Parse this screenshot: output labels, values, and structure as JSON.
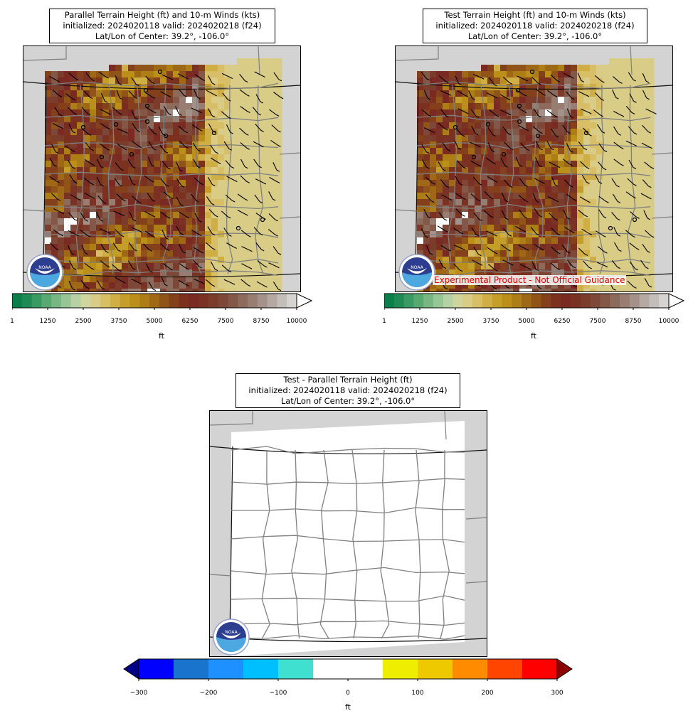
{
  "panels": {
    "parallel": {
      "title_lines": [
        "Parallel Terrain Height (ft) and 10-m Winds (kts)",
        "initialized: 2024020118 valid: 2024020218 (f24)",
        "Lat/Lon of Center: 39.2°, -106.0°"
      ]
    },
    "test": {
      "title_lines": [
        "Test Terrain Height (ft) and 10-m Winds (kts)",
        "initialized: 2024020118 valid: 2024020218 (f24)",
        "Lat/Lon of Center: 39.2°, -106.0°"
      ],
      "disclaimer": "Experimental Product - Not Official Guidance"
    },
    "diff": {
      "title_lines": [
        "Test - Parallel Terrain Height (ft)",
        "initialized: 2024020118 valid: 2024020218 (f24)",
        "Lat/Lon of Center: 39.2°, -106.0°"
      ]
    }
  },
  "logo": {
    "text": "NOAA"
  },
  "chart_data": [
    {
      "type": "heatmap",
      "name": "Parallel Terrain Height",
      "title": "Parallel Terrain Height (ft) and 10-m Winds (kts)",
      "center": "39.2°, -106.0°",
      "colorbar": {
        "label": "ft",
        "ticks": [
          "1",
          "1250",
          "2500",
          "3750",
          "5000",
          "6250",
          "7500",
          "8750",
          "10000"
        ],
        "range": [
          1,
          10000
        ],
        "extend": "max",
        "colors": [
          "#0b7f4a",
          "#1f8a55",
          "#3a9a63",
          "#58a872",
          "#78b783",
          "#98c596",
          "#b6d2a5",
          "#cfd59c",
          "#d8cc86",
          "#d8be66",
          "#cfae45",
          "#c59e2a",
          "#bb8f1a",
          "#ad7d16",
          "#9f6816",
          "#915418",
          "#83401b",
          "#7c301e",
          "#7a2a22",
          "#7a3224",
          "#7c3c2c",
          "#7e4838",
          "#845848",
          "#8c6a5c",
          "#977d72",
          "#a49189",
          "#b3a8a2",
          "#c4beba",
          "#d6d3d1"
        ]
      },
      "overlay": "10-m wind barbs (kts)"
    },
    {
      "type": "heatmap",
      "name": "Test Terrain Height",
      "title": "Test Terrain Height (ft) and 10-m Winds (kts)",
      "center": "39.2°, -106.0°",
      "colorbar": {
        "label": "ft",
        "ticks": [
          "1",
          "1250",
          "2500",
          "3750",
          "5000",
          "6250",
          "7500",
          "8750",
          "10000"
        ],
        "range": [
          1,
          10000
        ],
        "extend": "max"
      },
      "overlay": "10-m wind barbs (kts)"
    },
    {
      "type": "heatmap",
      "name": "Test - Parallel Terrain Height",
      "title": "Test - Parallel Terrain Height (ft)",
      "center": "39.2°, -106.0°",
      "field_value": 0,
      "colorbar": {
        "label": "ft",
        "ticks": [
          "−300",
          "−200",
          "−100",
          "0",
          "100",
          "200",
          "300"
        ],
        "range": [
          -300,
          300
        ],
        "extend": "both",
        "colors": [
          "#0000ff",
          "#1874cd",
          "#1e90ff",
          "#00bfff",
          "#40e0d0",
          "#ffffff",
          "#ffffff",
          "#eeee00",
          "#eec900",
          "#ff8c00",
          "#ff4500",
          "#ff0000"
        ],
        "under_color": "#00008b",
        "over_color": "#8b0000"
      }
    }
  ]
}
